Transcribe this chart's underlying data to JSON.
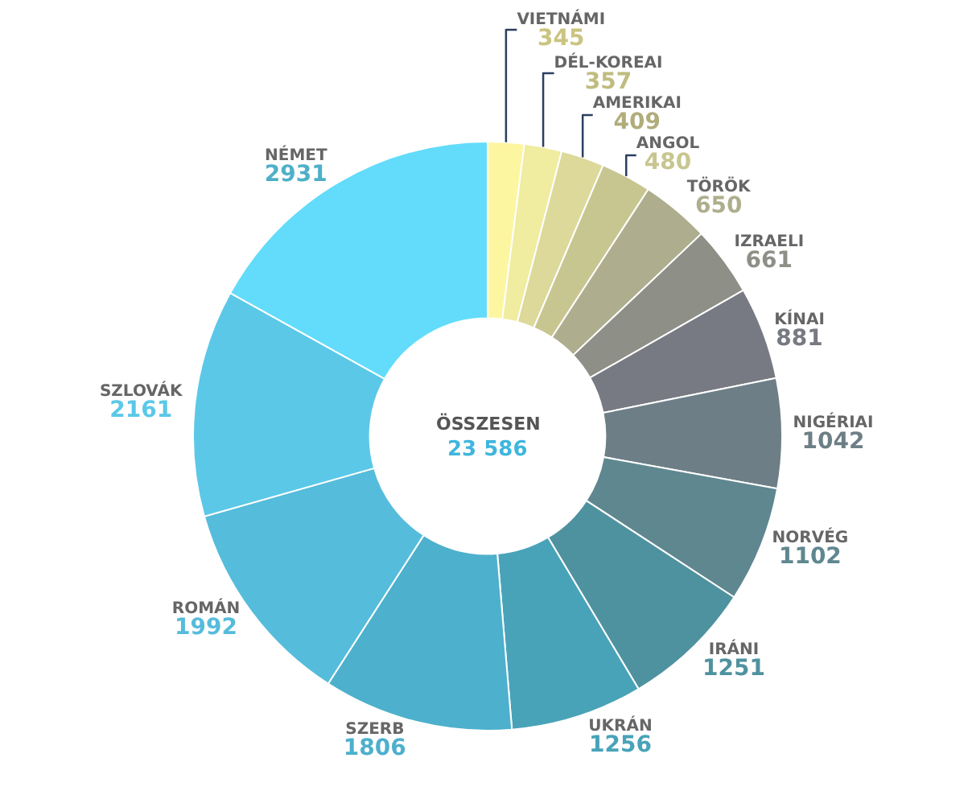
{
  "chart_data": {
    "type": "donut",
    "categories": [
      "VIETNÁMI",
      "DÉL-KOREAI",
      "AMERIKAI",
      "ANGOL",
      "TÖRÖK",
      "IZRAELI",
      "KÍNAI",
      "NIGÉRIAI",
      "NORVÉG",
      "IRÁNI",
      "UKRÁN",
      "SZERB",
      "ROMÁN",
      "SZLOVÁK",
      "NÉMET"
    ],
    "values": [
      345,
      357,
      409,
      480,
      650,
      661,
      881,
      1042,
      1102,
      1251,
      1256,
      1806,
      1992,
      2161,
      2931
    ],
    "colors": [
      "#fdf6a0",
      "#f0eca0",
      "#dcd99a",
      "#c8c690",
      "#aeae8e",
      "#8e8f86",
      "#777983",
      "#6d7e86",
      "#5f8790",
      "#4f929f",
      "#48a3b8",
      "#4db0cc",
      "#55bcdb",
      "#5bc8e8",
      "#62dcfa"
    ],
    "data_labels": true,
    "annotations": [
      "ÖSSZESEN",
      "23 586"
    ]
  }
}
